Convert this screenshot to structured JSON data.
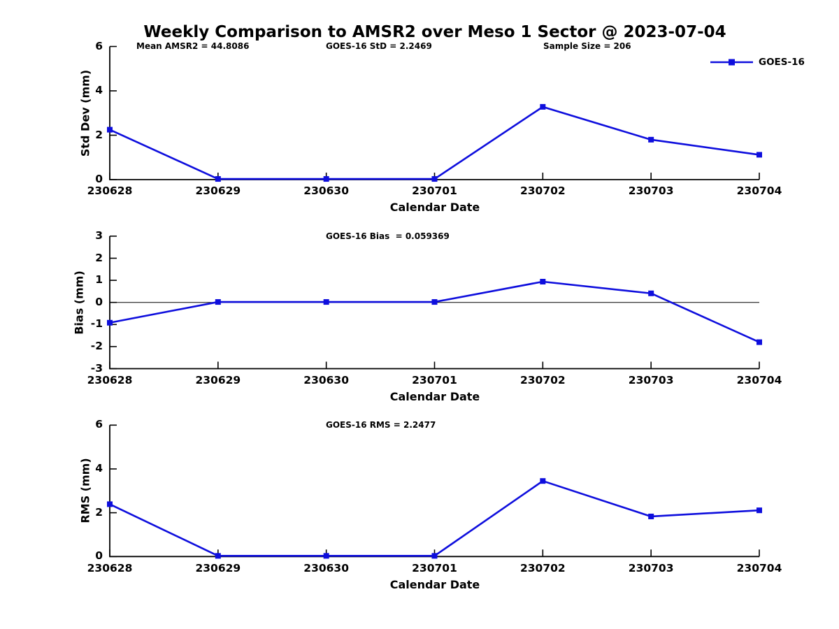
{
  "figure": {
    "title": "Weekly Comparison to AMSR2 over Meso 1 Sector @ 2023-07-04"
  },
  "legend": {
    "label": "GOES-16"
  },
  "colors": {
    "series": "#0e0edd",
    "axis": "#000000",
    "zero_line": "#000000",
    "text": "#000000"
  },
  "chart_data": [
    {
      "type": "line",
      "name": "std-dev",
      "annotations": [
        "Mean AMSR2 = 44.8086",
        "GOES-16 StD = 2.2469",
        "Sample Size = 206"
      ],
      "categories": [
        "230628",
        "230629",
        "230630",
        "230701",
        "230702",
        "230703",
        "230704"
      ],
      "series": [
        {
          "name": "GOES-16",
          "values": [
            2.25,
            0.03,
            0.03,
            0.03,
            3.28,
            1.8,
            1.12
          ]
        }
      ],
      "xlabel": "Calendar Date",
      "ylabel": "Std Dev (mm)",
      "ylim": [
        0,
        6
      ],
      "yticks": [
        0,
        2,
        4,
        6
      ],
      "zero_line": false,
      "grid": false,
      "marker": "square",
      "legend_position": "top-right"
    },
    {
      "type": "line",
      "name": "bias",
      "annotations": [
        "GOES-16 Bias  = 0.059369"
      ],
      "categories": [
        "230628",
        "230629",
        "230630",
        "230701",
        "230702",
        "230703",
        "230704"
      ],
      "series": [
        {
          "name": "GOES-16",
          "values": [
            -0.92,
            0.02,
            0.02,
            0.02,
            0.94,
            0.41,
            -1.8
          ]
        }
      ],
      "xlabel": "Calendar Date",
      "ylabel": "Bias (mm)",
      "ylim": [
        -3,
        3
      ],
      "yticks": [
        3,
        2,
        1,
        0,
        -1,
        -2,
        -3
      ],
      "zero_line": true,
      "grid": false,
      "marker": "square",
      "legend_position": "none"
    },
    {
      "type": "line",
      "name": "rms",
      "annotations": [
        "GOES-16 RMS = 2.2477"
      ],
      "categories": [
        "230628",
        "230629",
        "230630",
        "230701",
        "230702",
        "230703",
        "230704"
      ],
      "series": [
        {
          "name": "GOES-16",
          "values": [
            2.39,
            0.03,
            0.03,
            0.03,
            3.45,
            1.83,
            2.11
          ]
        }
      ],
      "xlabel": "Calendar Date",
      "ylabel": "RMS (mm)",
      "ylim": [
        0,
        6
      ],
      "yticks": [
        0,
        2,
        4,
        6
      ],
      "zero_line": false,
      "grid": false,
      "marker": "square",
      "legend_position": "none"
    }
  ]
}
